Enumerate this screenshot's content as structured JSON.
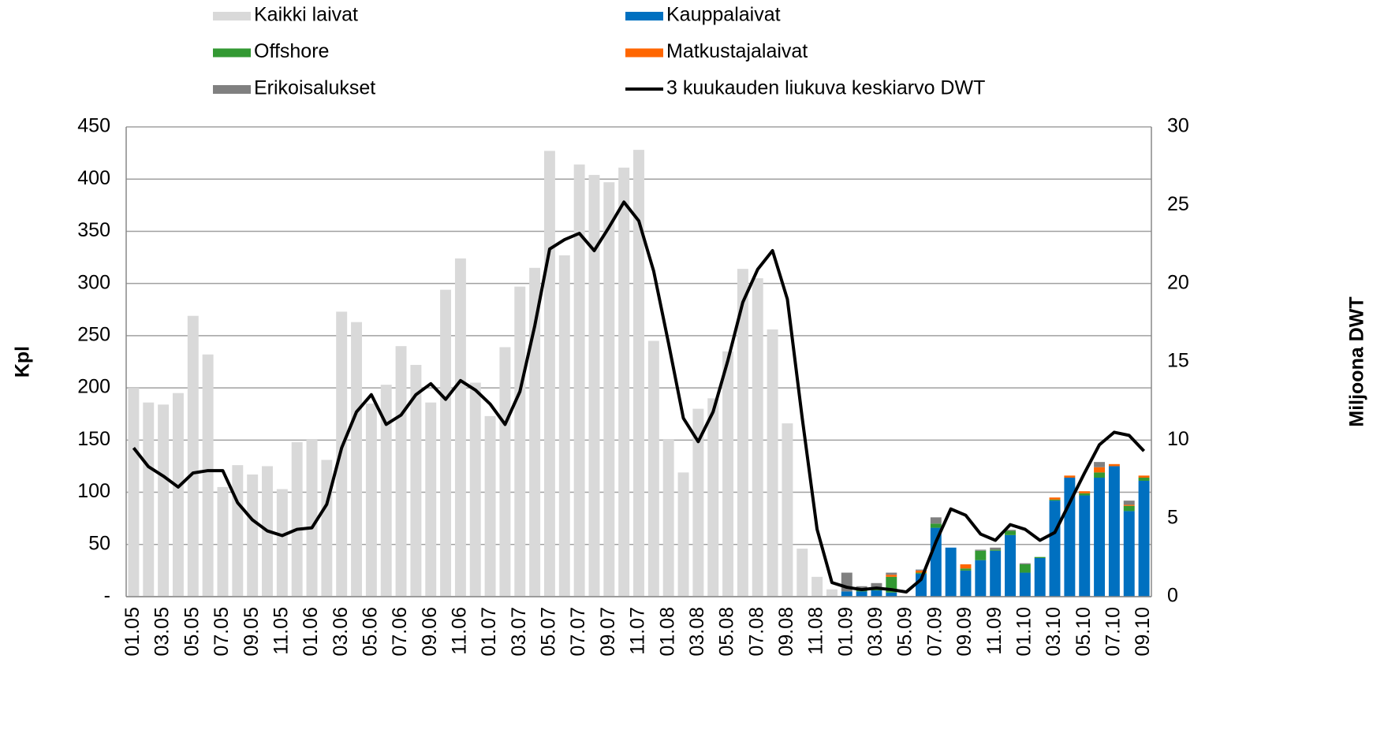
{
  "chart_data": {
    "type": "bar",
    "categories": [
      "01.05",
      null,
      "03.05",
      null,
      "05.05",
      null,
      "07.05",
      null,
      "09.05",
      null,
      "11.05",
      null,
      "01.06",
      null,
      "03.06",
      null,
      "05.06",
      null,
      "07.06",
      null,
      "09.06",
      null,
      "11.06",
      null,
      "01.07",
      null,
      "03.07",
      null,
      "05.07",
      null,
      "07.07",
      null,
      "09.07",
      null,
      "11.07",
      null,
      "01.08",
      null,
      "03.08",
      null,
      "05.08",
      null,
      "07.08",
      null,
      "09.08",
      null,
      "11.08",
      null,
      "01.09",
      null,
      "03.09",
      null,
      "05.09",
      null,
      "07.09",
      null,
      "09.09",
      null,
      "11.09",
      null,
      "01.10",
      null,
      "03.10",
      null,
      "05.10",
      null,
      "07.10",
      null,
      "09.10"
    ],
    "series": [
      {
        "name": "Kaikki laivat",
        "type": "bar",
        "color": "#d9d9d9",
        "values": [
          200,
          186,
          184,
          195,
          269,
          232,
          105,
          126,
          117,
          125,
          103,
          148,
          151,
          131,
          273,
          263,
          185,
          203,
          240,
          222,
          186,
          294,
          324,
          205,
          173,
          239,
          297,
          315,
          427,
          327,
          414,
          404,
          397,
          411,
          428,
          245,
          151,
          119,
          180,
          190,
          235,
          314,
          305,
          256,
          166,
          46,
          19,
          7,
          null,
          null,
          null,
          null,
          null,
          null,
          null,
          null,
          null,
          null,
          null,
          null,
          null,
          null,
          null,
          null,
          null,
          null,
          null,
          null,
          null
        ]
      },
      {
        "name": "Kauppalaivat",
        "type": "bar",
        "color": "#0070c0",
        "values": [
          null,
          null,
          null,
          null,
          null,
          null,
          null,
          null,
          null,
          null,
          null,
          null,
          null,
          null,
          null,
          null,
          null,
          null,
          null,
          null,
          null,
          null,
          null,
          null,
          null,
          null,
          null,
          null,
          null,
          null,
          null,
          null,
          null,
          null,
          null,
          null,
          null,
          null,
          null,
          null,
          null,
          null,
          null,
          null,
          null,
          null,
          null,
          null,
          5,
          5,
          6,
          4,
          0,
          22,
          66,
          47,
          25,
          35,
          44,
          59,
          23,
          37,
          92,
          114,
          97,
          114,
          125,
          82,
          111
        ]
      },
      {
        "name": "Offshore",
        "type": "bar",
        "color": "#339933",
        "values": [
          null,
          null,
          null,
          null,
          null,
          null,
          null,
          null,
          null,
          null,
          null,
          null,
          null,
          null,
          null,
          null,
          null,
          null,
          null,
          null,
          null,
          null,
          null,
          null,
          null,
          null,
          null,
          null,
          null,
          null,
          null,
          null,
          null,
          null,
          null,
          null,
          null,
          null,
          null,
          null,
          null,
          null,
          null,
          null,
          null,
          null,
          null,
          null,
          0,
          2,
          1,
          15,
          0,
          1,
          4,
          0,
          2,
          9,
          1,
          4,
          8,
          1,
          1,
          0,
          2,
          5,
          0,
          5,
          3
        ]
      },
      {
        "name": "Matkustajalaivat",
        "type": "bar",
        "color": "#ff6600",
        "values": [
          null,
          null,
          null,
          null,
          null,
          null,
          null,
          null,
          null,
          null,
          null,
          null,
          null,
          null,
          null,
          null,
          null,
          null,
          null,
          null,
          null,
          null,
          null,
          null,
          null,
          null,
          null,
          null,
          null,
          null,
          null,
          null,
          null,
          null,
          null,
          null,
          null,
          null,
          null,
          null,
          null,
          null,
          null,
          null,
          null,
          null,
          null,
          null,
          0,
          1,
          0,
          2,
          0,
          2,
          0,
          0,
          4,
          0,
          0,
          0,
          0,
          0,
          2,
          2,
          2,
          5,
          2,
          1,
          2
        ]
      },
      {
        "name": "Erikoisalukset",
        "type": "bar",
        "color": "#808080",
        "values": [
          null,
          null,
          null,
          null,
          null,
          null,
          null,
          null,
          null,
          null,
          null,
          null,
          null,
          null,
          null,
          null,
          null,
          null,
          null,
          null,
          null,
          null,
          null,
          null,
          null,
          null,
          null,
          null,
          null,
          null,
          null,
          null,
          null,
          null,
          null,
          null,
          null,
          null,
          null,
          null,
          null,
          null,
          null,
          null,
          null,
          null,
          null,
          null,
          18,
          2,
          6,
          2,
          0,
          1,
          6,
          0,
          0,
          1,
          2,
          1,
          1,
          0,
          0,
          0,
          0,
          5,
          0,
          4,
          0
        ]
      },
      {
        "name": "3 kuukauden liukuva keskiarvo DWT",
        "type": "line",
        "axis": "y2",
        "color": "#000000",
        "values": [
          9.5,
          8.3,
          7.7,
          7.0,
          7.9,
          8.05,
          8.05,
          6.0,
          4.9,
          4.2,
          3.9,
          4.3,
          4.4,
          5.9,
          9.5,
          11.8,
          12.9,
          11.0,
          11.6,
          12.9,
          13.6,
          12.6,
          13.8,
          13.2,
          12.3,
          11.0,
          13.1,
          17.3,
          22.2,
          22.8,
          23.2,
          22.1,
          23.6,
          25.2,
          24.0,
          20.8,
          16.2,
          11.4,
          9.9,
          11.8,
          15.1,
          18.8,
          20.9,
          22.1,
          19.0,
          11.4,
          4.3,
          0.9,
          0.6,
          0.45,
          0.55,
          0.45,
          0.3,
          1.1,
          3.5,
          5.6,
          5.2,
          4.0,
          3.6,
          4.6,
          4.3,
          3.6,
          4.1,
          6.0,
          7.9,
          9.7,
          10.5,
          10.3,
          9.3
        ]
      }
    ],
    "y_label": "Kpl",
    "y2_label": "Miljoona DWT",
    "ylim": [
      0,
      450
    ],
    "yticks": [
      {
        "value": 0,
        "label": "-"
      },
      50,
      100,
      150,
      200,
      250,
      300,
      350,
      400,
      450
    ],
    "y2lim": [
      0,
      30
    ],
    "y2ticks": [
      0,
      5,
      10,
      15,
      20,
      25,
      30
    ],
    "grid": true,
    "stacked": true,
    "legend": "top"
  }
}
